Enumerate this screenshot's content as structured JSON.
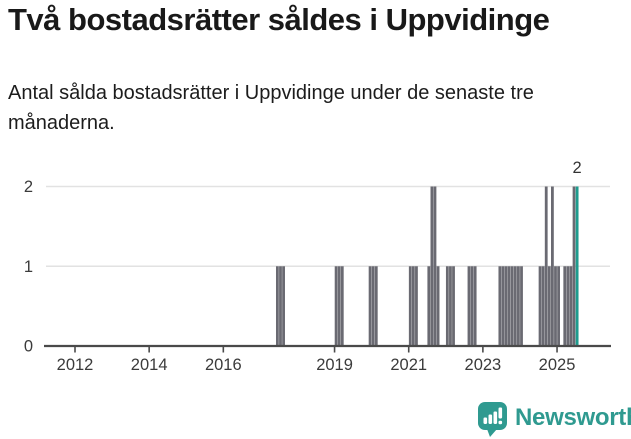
{
  "header": {
    "title": "Två bostadsrätter såldes i Uppvidinge",
    "subtitle": "Antal sålda bostadsrätter i Uppvidinge under de senaste tre månaderna."
  },
  "chart_data": {
    "type": "bar",
    "title": "Två bostadsrätter såldes i Uppvidinge",
    "xlabel": "",
    "ylabel": "",
    "ylim": [
      0,
      2
    ],
    "y_ticks": [
      0,
      1,
      2
    ],
    "x_ticks": [
      2012,
      2014,
      2016,
      2019,
      2021,
      2023,
      2025
    ],
    "x_range_years": [
      2011.2,
      2026.4
    ],
    "grid": "horizontal",
    "legend": "none",
    "series_name": "Antal sålda bostadsrätter (rullande tre månader)",
    "all_other_months_value": 0,
    "points": [
      {
        "month": "2017-06",
        "value": 1
      },
      {
        "month": "2017-07",
        "value": 1
      },
      {
        "month": "2017-08",
        "value": 1
      },
      {
        "month": "2019-01",
        "value": 1
      },
      {
        "month": "2019-02",
        "value": 1
      },
      {
        "month": "2019-03",
        "value": 1
      },
      {
        "month": "2019-12",
        "value": 1
      },
      {
        "month": "2020-01",
        "value": 1
      },
      {
        "month": "2020-02",
        "value": 1
      },
      {
        "month": "2021-01",
        "value": 1
      },
      {
        "month": "2021-02",
        "value": 1
      },
      {
        "month": "2021-03",
        "value": 1
      },
      {
        "month": "2021-07",
        "value": 1
      },
      {
        "month": "2021-08",
        "value": 2
      },
      {
        "month": "2021-09",
        "value": 2
      },
      {
        "month": "2021-10",
        "value": 1
      },
      {
        "month": "2022-01",
        "value": 1
      },
      {
        "month": "2022-02",
        "value": 1
      },
      {
        "month": "2022-03",
        "value": 1
      },
      {
        "month": "2022-08",
        "value": 1
      },
      {
        "month": "2022-09",
        "value": 1
      },
      {
        "month": "2022-10",
        "value": 1
      },
      {
        "month": "2023-06",
        "value": 1
      },
      {
        "month": "2023-07",
        "value": 1
      },
      {
        "month": "2023-08",
        "value": 1
      },
      {
        "month": "2023-09",
        "value": 1
      },
      {
        "month": "2023-10",
        "value": 1
      },
      {
        "month": "2023-11",
        "value": 1
      },
      {
        "month": "2023-12",
        "value": 1
      },
      {
        "month": "2024-01",
        "value": 1
      },
      {
        "month": "2024-07",
        "value": 1
      },
      {
        "month": "2024-08",
        "value": 1
      },
      {
        "month": "2024-09",
        "value": 2
      },
      {
        "month": "2024-10",
        "value": 1
      },
      {
        "month": "2024-11",
        "value": 2
      },
      {
        "month": "2024-12",
        "value": 1
      },
      {
        "month": "2025-01",
        "value": 1
      },
      {
        "month": "2025-03",
        "value": 1
      },
      {
        "month": "2025-04",
        "value": 1
      },
      {
        "month": "2025-05",
        "value": 1
      },
      {
        "month": "2025-06",
        "value": 2
      }
    ],
    "highlight": {
      "month": "2025-07",
      "value": 2,
      "label": "2"
    },
    "colors": {
      "bar": "#6a6a72",
      "highlight": "#1e9c8e",
      "grid": "#e2e2e2",
      "axis": "#4a4a4a",
      "tick_label": "#3b3b3b",
      "value_label": "#333333"
    }
  },
  "footer": {
    "brand": "Newsworthy",
    "brand_color": "#2f9a90",
    "logo_icon": "newsworthy-speech-bubble-bar-chart-icon"
  }
}
